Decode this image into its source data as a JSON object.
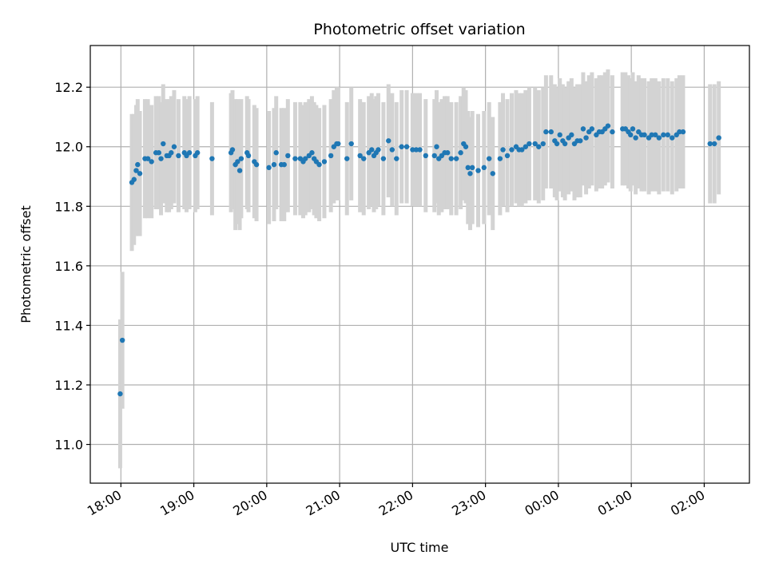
{
  "chart_data": {
    "type": "scatter",
    "title": "Photometric offset variation",
    "xlabel": "UTC time",
    "ylabel": "Photometric offset",
    "x_unit": "hours (18.0 = 18:00, 24.0 = 00:00)",
    "xlim": [
      17.58,
      26.62
    ],
    "ylim": [
      10.87,
      12.34
    ],
    "x_ticks": [
      {
        "value": 18,
        "label": "18:00"
      },
      {
        "value": 19,
        "label": "19:00"
      },
      {
        "value": 20,
        "label": "20:00"
      },
      {
        "value": 21,
        "label": "21:00"
      },
      {
        "value": 22,
        "label": "22:00"
      },
      {
        "value": 23,
        "label": "23:00"
      },
      {
        "value": 24,
        "label": "00:00"
      },
      {
        "value": 25,
        "label": "01:00"
      },
      {
        "value": 26,
        "label": "02:00"
      }
    ],
    "y_ticks": [
      {
        "value": 11.0,
        "label": "11.0"
      },
      {
        "value": 11.2,
        "label": "11.2"
      },
      {
        "value": 11.4,
        "label": "11.4"
      },
      {
        "value": 11.6,
        "label": "11.6"
      },
      {
        "value": 11.8,
        "label": "11.8"
      },
      {
        "value": 12.0,
        "label": "12.0"
      },
      {
        "value": 12.2,
        "label": "12.2"
      }
    ],
    "grid": true,
    "marker_color": "#1f77b4",
    "errorbar_color": "#d3d3d3",
    "series": [
      {
        "points": [
          [
            17.99,
            11.17,
            0.25
          ],
          [
            18.02,
            11.35,
            0.23
          ],
          [
            18.15,
            11.88,
            0.23
          ],
          [
            18.18,
            11.89,
            0.22
          ],
          [
            18.21,
            11.92,
            0.22
          ],
          [
            18.23,
            11.94,
            0.22
          ],
          [
            18.26,
            11.91,
            0.21
          ],
          [
            18.33,
            11.96,
            0.2
          ],
          [
            18.37,
            11.96,
            0.2
          ],
          [
            18.42,
            11.95,
            0.19
          ],
          [
            18.48,
            11.98,
            0.19
          ],
          [
            18.52,
            11.98,
            0.19
          ],
          [
            18.55,
            11.96,
            0.19
          ],
          [
            18.58,
            12.01,
            0.2
          ],
          [
            18.63,
            11.97,
            0.19
          ],
          [
            18.66,
            11.97,
            0.19
          ],
          [
            18.69,
            11.98,
            0.19
          ],
          [
            18.73,
            12.0,
            0.19
          ],
          [
            18.79,
            11.97,
            0.19
          ],
          [
            18.87,
            11.98,
            0.19
          ],
          [
            18.9,
            11.97,
            0.19
          ],
          [
            18.94,
            11.98,
            0.19
          ],
          [
            19.02,
            11.97,
            0.19
          ],
          [
            19.05,
            11.98,
            0.19
          ],
          [
            19.25,
            11.96,
            0.19
          ],
          [
            19.51,
            11.98,
            0.2
          ],
          [
            19.53,
            11.99,
            0.2
          ],
          [
            19.57,
            11.94,
            0.22
          ],
          [
            19.6,
            11.95,
            0.21
          ],
          [
            19.63,
            11.92,
            0.2
          ],
          [
            19.65,
            11.96,
            0.2
          ],
          [
            19.73,
            11.98,
            0.19
          ],
          [
            19.75,
            11.97,
            0.19
          ],
          [
            19.83,
            11.95,
            0.19
          ],
          [
            19.86,
            11.94,
            0.19
          ],
          [
            20.03,
            11.93,
            0.19
          ],
          [
            20.1,
            11.94,
            0.19
          ],
          [
            20.13,
            11.98,
            0.19
          ],
          [
            20.2,
            11.94,
            0.19
          ],
          [
            20.24,
            11.94,
            0.19
          ],
          [
            20.29,
            11.97,
            0.19
          ],
          [
            20.39,
            11.96,
            0.19
          ],
          [
            20.46,
            11.96,
            0.19
          ],
          [
            20.5,
            11.95,
            0.19
          ],
          [
            20.53,
            11.96,
            0.19
          ],
          [
            20.58,
            11.97,
            0.19
          ],
          [
            20.62,
            11.98,
            0.19
          ],
          [
            20.65,
            11.96,
            0.19
          ],
          [
            20.68,
            11.95,
            0.19
          ],
          [
            20.72,
            11.94,
            0.19
          ],
          [
            20.79,
            11.95,
            0.19
          ],
          [
            20.88,
            11.97,
            0.19
          ],
          [
            20.92,
            12.0,
            0.19
          ],
          [
            20.96,
            12.01,
            0.19
          ],
          [
            20.98,
            12.01,
            0.19
          ],
          [
            21.1,
            11.96,
            0.19
          ],
          [
            21.16,
            12.01,
            0.19
          ],
          [
            21.28,
            11.97,
            0.19
          ],
          [
            21.33,
            11.96,
            0.19
          ],
          [
            21.4,
            11.98,
            0.19
          ],
          [
            21.44,
            11.99,
            0.19
          ],
          [
            21.47,
            11.97,
            0.19
          ],
          [
            21.5,
            11.98,
            0.19
          ],
          [
            21.53,
            11.99,
            0.19
          ],
          [
            21.6,
            11.96,
            0.19
          ],
          [
            21.67,
            12.02,
            0.19
          ],
          [
            21.72,
            11.99,
            0.19
          ],
          [
            21.78,
            11.96,
            0.19
          ],
          [
            21.85,
            12.0,
            0.19
          ],
          [
            21.92,
            12.0,
            0.19
          ],
          [
            22.0,
            11.99,
            0.19
          ],
          [
            22.05,
            11.99,
            0.19
          ],
          [
            22.1,
            11.99,
            0.19
          ],
          [
            22.18,
            11.97,
            0.19
          ],
          [
            22.3,
            11.97,
            0.19
          ],
          [
            22.33,
            12.0,
            0.19
          ],
          [
            22.36,
            11.96,
            0.19
          ],
          [
            22.4,
            11.97,
            0.19
          ],
          [
            22.44,
            11.98,
            0.19
          ],
          [
            22.48,
            11.98,
            0.19
          ],
          [
            22.53,
            11.96,
            0.19
          ],
          [
            22.6,
            11.96,
            0.19
          ],
          [
            22.66,
            11.98,
            0.19
          ],
          [
            22.7,
            12.01,
            0.19
          ],
          [
            22.73,
            12.0,
            0.19
          ],
          [
            22.76,
            11.93,
            0.19
          ],
          [
            22.79,
            11.91,
            0.19
          ],
          [
            22.82,
            11.93,
            0.19
          ],
          [
            22.9,
            11.92,
            0.19
          ],
          [
            22.98,
            11.93,
            0.19
          ],
          [
            23.05,
            11.96,
            0.19
          ],
          [
            23.1,
            11.91,
            0.19
          ],
          [
            23.2,
            11.96,
            0.19
          ],
          [
            23.24,
            11.99,
            0.19
          ],
          [
            23.3,
            11.97,
            0.19
          ],
          [
            23.36,
            11.99,
            0.19
          ],
          [
            23.42,
            12.0,
            0.19
          ],
          [
            23.46,
            11.99,
            0.19
          ],
          [
            23.5,
            11.99,
            0.19
          ],
          [
            23.55,
            12.0,
            0.19
          ],
          [
            23.6,
            12.01,
            0.19
          ],
          [
            23.68,
            12.01,
            0.19
          ],
          [
            23.73,
            12.0,
            0.19
          ],
          [
            23.79,
            12.01,
            0.19
          ],
          [
            23.83,
            12.05,
            0.19
          ],
          [
            23.9,
            12.05,
            0.19
          ],
          [
            23.95,
            12.02,
            0.19
          ],
          [
            23.98,
            12.01,
            0.19
          ],
          [
            24.02,
            12.04,
            0.19
          ],
          [
            24.06,
            12.02,
            0.19
          ],
          [
            24.09,
            12.01,
            0.19
          ],
          [
            24.14,
            12.03,
            0.19
          ],
          [
            24.18,
            12.04,
            0.19
          ],
          [
            24.22,
            12.01,
            0.19
          ],
          [
            24.26,
            12.02,
            0.19
          ],
          [
            24.3,
            12.02,
            0.19
          ],
          [
            24.34,
            12.06,
            0.19
          ],
          [
            24.38,
            12.03,
            0.19
          ],
          [
            24.42,
            12.05,
            0.19
          ],
          [
            24.46,
            12.06,
            0.19
          ],
          [
            24.52,
            12.04,
            0.19
          ],
          [
            24.56,
            12.05,
            0.19
          ],
          [
            24.6,
            12.05,
            0.19
          ],
          [
            24.64,
            12.06,
            0.19
          ],
          [
            24.68,
            12.07,
            0.19
          ],
          [
            24.74,
            12.05,
            0.19
          ],
          [
            24.88,
            12.06,
            0.19
          ],
          [
            24.92,
            12.06,
            0.19
          ],
          [
            24.96,
            12.05,
            0.19
          ],
          [
            24.99,
            12.04,
            0.19
          ],
          [
            25.02,
            12.06,
            0.19
          ],
          [
            25.06,
            12.03,
            0.19
          ],
          [
            25.1,
            12.05,
            0.19
          ],
          [
            25.14,
            12.04,
            0.19
          ],
          [
            25.18,
            12.04,
            0.19
          ],
          [
            25.24,
            12.03,
            0.19
          ],
          [
            25.28,
            12.04,
            0.19
          ],
          [
            25.33,
            12.04,
            0.19
          ],
          [
            25.38,
            12.03,
            0.19
          ],
          [
            25.44,
            12.04,
            0.19
          ],
          [
            25.5,
            12.04,
            0.19
          ],
          [
            25.56,
            12.03,
            0.19
          ],
          [
            25.62,
            12.04,
            0.19
          ],
          [
            25.66,
            12.05,
            0.19
          ],
          [
            25.71,
            12.05,
            0.19
          ],
          [
            26.08,
            12.01,
            0.2
          ],
          [
            26.14,
            12.01,
            0.2
          ],
          [
            26.2,
            12.03,
            0.19
          ]
        ]
      }
    ]
  }
}
